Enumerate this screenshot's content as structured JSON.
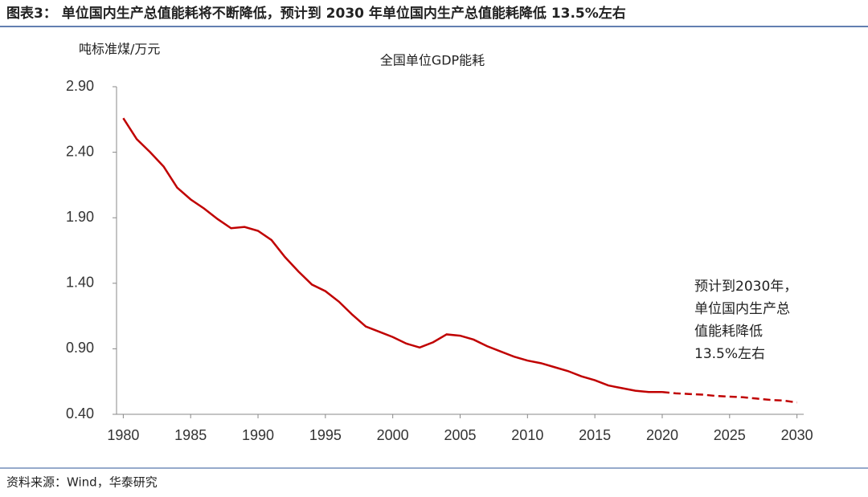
{
  "chart_data": {
    "type": "line",
    "title": "图表3：  单位国内生产总值能耗将不断降低，预计到 2030 年单位国内生产总值能耗降低 13.5%左右",
    "subtitle": "全国单位GDP能耗",
    "y_label": "吨标准煤/万元",
    "annotation": [
      "预计到2030年，",
      "单位国内生产总",
      "值能耗降低",
      "13.5%左右"
    ],
    "source": "资料来源：Wind，华泰研究",
    "x": [
      1980,
      1981,
      1982,
      1983,
      1984,
      1985,
      1986,
      1987,
      1988,
      1989,
      1990,
      1991,
      1992,
      1993,
      1994,
      1995,
      1996,
      1997,
      1998,
      1999,
      2000,
      2001,
      2002,
      2003,
      2004,
      2005,
      2006,
      2007,
      2008,
      2009,
      2010,
      2011,
      2012,
      2013,
      2014,
      2015,
      2016,
      2017,
      2018,
      2019,
      2020,
      2021,
      2022,
      2023,
      2024,
      2025,
      2026,
      2027,
      2028,
      2029,
      2030
    ],
    "series": [
      {
        "color": "#c00000",
        "dashed": false,
        "values": [
          2.66,
          2.5,
          2.4,
          2.29,
          2.13,
          2.04,
          1.97,
          1.89,
          1.82,
          1.83,
          1.8,
          1.73,
          1.6,
          1.49,
          1.39,
          1.34,
          1.26,
          1.16,
          1.07,
          1.03,
          0.99,
          0.94,
          0.91,
          0.95,
          1.01,
          1.0,
          0.97,
          0.92,
          0.88,
          0.84,
          0.81,
          0.79,
          0.76,
          0.73,
          0.69,
          0.66,
          0.62,
          0.6,
          0.58,
          0.57,
          0.57,
          null,
          null,
          null,
          null,
          null,
          null,
          null,
          null,
          null,
          null
        ]
      },
      {
        "color": "#c00000",
        "dashed": true,
        "values": [
          null,
          null,
          null,
          null,
          null,
          null,
          null,
          null,
          null,
          null,
          null,
          null,
          null,
          null,
          null,
          null,
          null,
          null,
          null,
          null,
          null,
          null,
          null,
          null,
          null,
          null,
          null,
          null,
          null,
          null,
          null,
          null,
          null,
          null,
          null,
          null,
          null,
          null,
          null,
          null,
          0.57,
          0.56,
          0.555,
          0.55,
          0.54,
          0.535,
          0.53,
          0.52,
          0.51,
          0.505,
          0.49
        ]
      }
    ],
    "xlim": [
      1979.5,
      2030.5
    ],
    "xticks": [
      1980,
      1985,
      1990,
      1995,
      2000,
      2005,
      2010,
      2015,
      2020,
      2025,
      2030
    ],
    "ylim": [
      0.4,
      2.9
    ],
    "yticks": [
      {
        "value": 0.4,
        "label": "0.40"
      },
      {
        "value": 0.9,
        "label": "0.90"
      },
      {
        "value": 1.4,
        "label": "1.40"
      },
      {
        "value": 1.9,
        "label": "1.90"
      },
      {
        "value": 2.4,
        "label": "2.40"
      },
      {
        "value": 2.9,
        "label": "2.90"
      }
    ],
    "grid": false
  }
}
